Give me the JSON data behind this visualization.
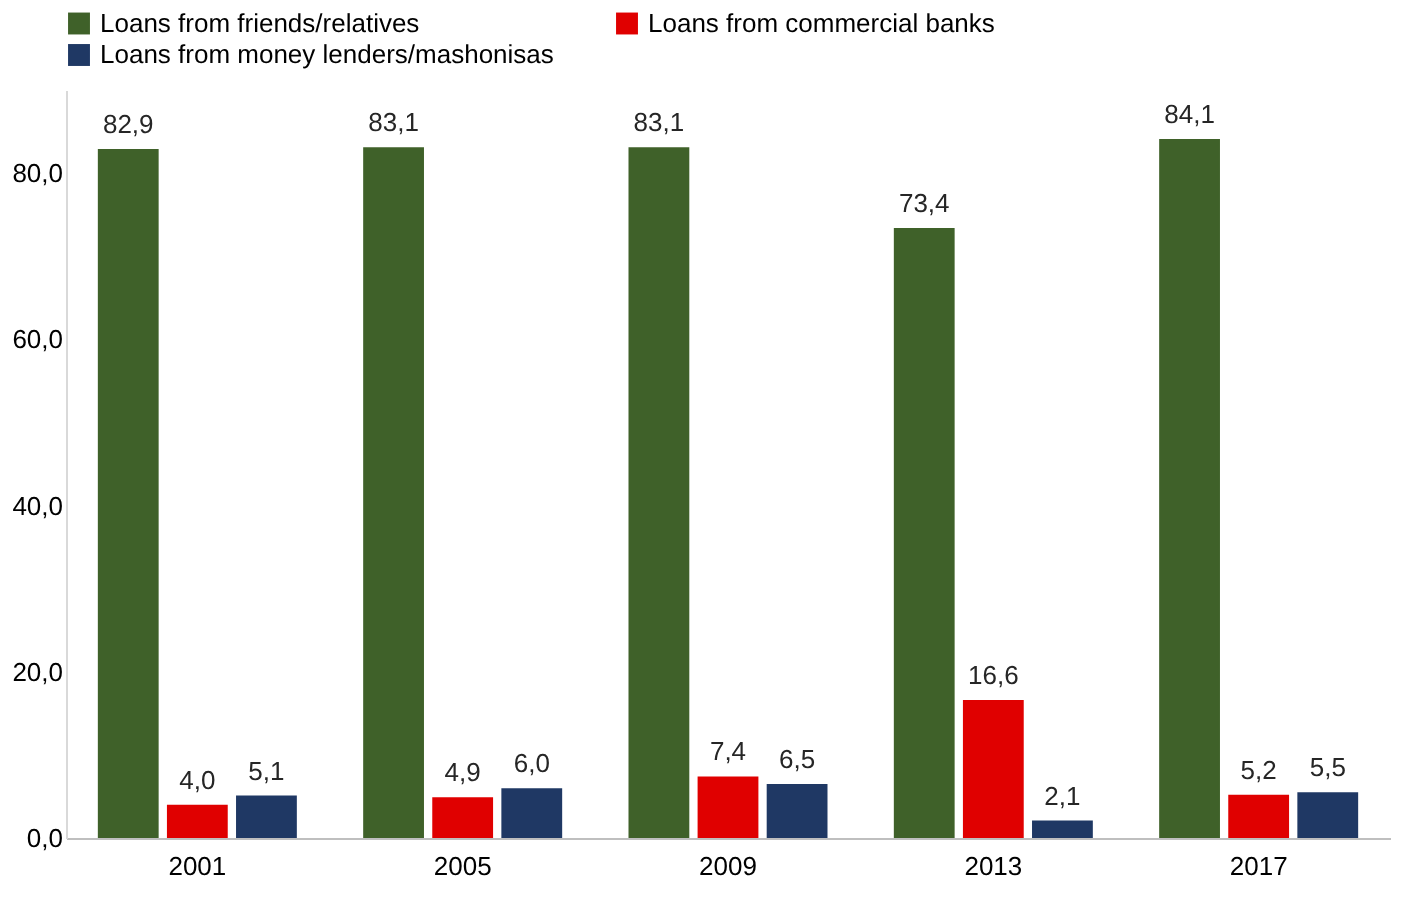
{
  "chart_data": {
    "type": "bar",
    "categories": [
      "2001",
      "2005",
      "2009",
      "2013",
      "2017"
    ],
    "series": [
      {
        "name": "Loans from friends/relatives",
        "color": "#3f6129",
        "values": [
          82.9,
          83.1,
          83.1,
          73.4,
          84.1
        ],
        "value_labels": [
          "82,9",
          "83,1",
          "83,1",
          "73,4",
          "84,1"
        ]
      },
      {
        "name": "Loans from commercial banks",
        "color": "#e00000",
        "values": [
          4.0,
          4.9,
          7.4,
          16.6,
          5.2
        ],
        "value_labels": [
          "4,0",
          "4,9",
          "7,4",
          "16,6",
          "5,2"
        ]
      },
      {
        "name": "Loans from money lenders/mashonisas",
        "color": "#1f3864",
        "values": [
          5.1,
          6.0,
          6.5,
          2.1,
          5.5
        ],
        "value_labels": [
          "5,1",
          "6,0",
          "6,5",
          "2,1",
          "5,5"
        ]
      }
    ],
    "yticks": [
      {
        "value": 0,
        "label": "0,0"
      },
      {
        "value": 20,
        "label": "20,0"
      },
      {
        "value": 40,
        "label": "40,0"
      },
      {
        "value": 60,
        "label": "60,0"
      },
      {
        "value": 80,
        "label": "80,0"
      }
    ],
    "ylim": [
      0,
      90
    ],
    "grid": false,
    "legend": "top left"
  }
}
